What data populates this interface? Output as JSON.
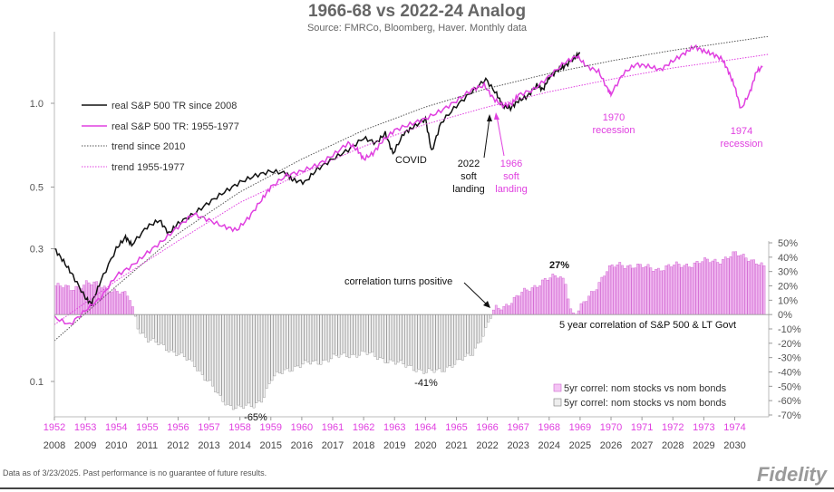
{
  "chart_data": {
    "type": "line",
    "title": "1966-68 vs 2022-24 Analog",
    "subtitle": "Source: FMRCo, Bloomberg, Haver.  Monthly data",
    "x_ticks_bottom": [
      "2008",
      "2009",
      "2010",
      "2011",
      "2012",
      "2013",
      "2014",
      "2015",
      "2016",
      "2017",
      "2018",
      "2019",
      "2020",
      "2021",
      "2022",
      "2023",
      "2024",
      "2025",
      "2026",
      "2027",
      "2028",
      "2029",
      "2030"
    ],
    "x_ticks_top": [
      "1952",
      "1953",
      "1954",
      "1955",
      "1956",
      "1957",
      "1958",
      "1959",
      "1960",
      "1961",
      "1962",
      "1963",
      "1964",
      "1965",
      "1966",
      "1967",
      "1968",
      "1969",
      "1970",
      "1971",
      "1972",
      "1973",
      "1974"
    ],
    "y_left_ticks": [
      {
        "value": 1.0,
        "label": "1.0"
      },
      {
        "value": 0.5,
        "label": "0.5"
      },
      {
        "value": 0.3,
        "label": "0.3"
      },
      {
        "value": 0.1,
        "label": "0.1"
      }
    ],
    "y_right_ticks": [
      {
        "value": 50,
        "label": "50%"
      },
      {
        "value": 40,
        "label": "40%"
      },
      {
        "value": 30,
        "label": "30%"
      },
      {
        "value": 20,
        "label": "20%"
      },
      {
        "value": 10,
        "label": "10%"
      },
      {
        "value": 0,
        "label": "0%"
      },
      {
        "value": -10,
        "label": "-10%"
      },
      {
        "value": -20,
        "label": "-20%"
      },
      {
        "value": -30,
        "label": "-30%"
      },
      {
        "value": -40,
        "label": "-40%"
      },
      {
        "value": -50,
        "label": "-50%"
      },
      {
        "value": -60,
        "label": "-60%"
      },
      {
        "value": -70,
        "label": "-70%"
      }
    ],
    "y_right_range": [
      -70,
      50
    ],
    "series": [
      {
        "name": "real S&P 500 TR since 2008",
        "color": "#111111",
        "style": "solid",
        "points": [
          [
            2008.0,
            0.3
          ],
          [
            2008.3,
            0.27
          ],
          [
            2008.6,
            0.24
          ],
          [
            2009.0,
            0.2
          ],
          [
            2009.2,
            0.19
          ],
          [
            2009.5,
            0.23
          ],
          [
            2010.0,
            0.3
          ],
          [
            2010.3,
            0.33
          ],
          [
            2010.5,
            0.31
          ],
          [
            2011.0,
            0.36
          ],
          [
            2011.4,
            0.38
          ],
          [
            2011.7,
            0.34
          ],
          [
            2012.0,
            0.37
          ],
          [
            2012.5,
            0.4
          ],
          [
            2013.0,
            0.44
          ],
          [
            2013.5,
            0.48
          ],
          [
            2014.0,
            0.52
          ],
          [
            2014.5,
            0.55
          ],
          [
            2015.0,
            0.57
          ],
          [
            2015.5,
            0.56
          ],
          [
            2015.7,
            0.53
          ],
          [
            2016.1,
            0.52
          ],
          [
            2016.5,
            0.58
          ],
          [
            2017.0,
            0.63
          ],
          [
            2017.5,
            0.68
          ],
          [
            2018.0,
            0.75
          ],
          [
            2018.4,
            0.72
          ],
          [
            2018.7,
            0.78
          ],
          [
            2018.95,
            0.66
          ],
          [
            2019.3,
            0.78
          ],
          [
            2019.6,
            0.82
          ],
          [
            2020.0,
            0.88
          ],
          [
            2020.2,
            0.67
          ],
          [
            2020.5,
            0.85
          ],
          [
            2021.0,
            0.98
          ],
          [
            2021.5,
            1.1
          ],
          [
            2021.95,
            1.22
          ],
          [
            2022.3,
            1.08
          ],
          [
            2022.5,
            0.98
          ],
          [
            2022.75,
            0.96
          ],
          [
            2023.0,
            1.02
          ],
          [
            2023.3,
            1.06
          ],
          [
            2023.6,
            1.16
          ],
          [
            2023.8,
            1.12
          ],
          [
            2024.0,
            1.24
          ],
          [
            2024.3,
            1.32
          ],
          [
            2024.5,
            1.36
          ],
          [
            2024.8,
            1.45
          ],
          [
            2025.0,
            1.52
          ]
        ]
      },
      {
        "name": "real S&P 500 TR: 1955-1977",
        "color": "#e040e0",
        "style": "solid",
        "points": [
          [
            2008.0,
            0.17
          ],
          [
            2008.5,
            0.16
          ],
          [
            2009.0,
            0.18
          ],
          [
            2009.5,
            0.2
          ],
          [
            2010.0,
            0.24
          ],
          [
            2010.5,
            0.26
          ],
          [
            2011.0,
            0.29
          ],
          [
            2011.5,
            0.32
          ],
          [
            2012.0,
            0.36
          ],
          [
            2012.5,
            0.4
          ],
          [
            2013.0,
            0.38
          ],
          [
            2013.5,
            0.36
          ],
          [
            2013.9,
            0.35
          ],
          [
            2014.3,
            0.39
          ],
          [
            2014.7,
            0.45
          ],
          [
            2015.0,
            0.5
          ],
          [
            2015.5,
            0.55
          ],
          [
            2016.0,
            0.57
          ],
          [
            2016.5,
            0.6
          ],
          [
            2017.0,
            0.65
          ],
          [
            2017.5,
            0.72
          ],
          [
            2017.8,
            0.68
          ],
          [
            2018.0,
            0.63
          ],
          [
            2018.3,
            0.66
          ],
          [
            2018.6,
            0.73
          ],
          [
            2019.0,
            0.8
          ],
          [
            2019.5,
            0.84
          ],
          [
            2020.0,
            0.88
          ],
          [
            2020.5,
            0.94
          ],
          [
            2021.0,
            1.02
          ],
          [
            2021.5,
            1.12
          ],
          [
            2021.9,
            1.16
          ],
          [
            2022.2,
            1.04
          ],
          [
            2022.5,
            0.98
          ],
          [
            2022.8,
            1.0
          ],
          [
            2023.0,
            1.07
          ],
          [
            2023.5,
            1.12
          ],
          [
            2024.0,
            1.25
          ],
          [
            2024.5,
            1.4
          ],
          [
            2024.9,
            1.48
          ],
          [
            2025.2,
            1.36
          ],
          [
            2025.6,
            1.3
          ],
          [
            2025.9,
            1.12
          ],
          [
            2026.0,
            1.08
          ],
          [
            2026.4,
            1.28
          ],
          [
            2026.8,
            1.38
          ],
          [
            2027.2,
            1.36
          ],
          [
            2027.6,
            1.32
          ],
          [
            2028.0,
            1.42
          ],
          [
            2028.4,
            1.52
          ],
          [
            2028.7,
            1.6
          ],
          [
            2029.0,
            1.54
          ],
          [
            2029.3,
            1.5
          ],
          [
            2029.6,
            1.44
          ],
          [
            2029.8,
            1.3
          ],
          [
            2030.0,
            1.15
          ],
          [
            2030.2,
            0.95
          ],
          [
            2030.5,
            1.1
          ],
          [
            2030.7,
            1.3
          ],
          [
            2030.9,
            1.35
          ]
        ]
      },
      {
        "name": "trend since 2010",
        "color": "#555555",
        "style": "dotted",
        "points": [
          [
            2008.0,
            0.14
          ],
          [
            2010.0,
            0.22
          ],
          [
            2012.0,
            0.34
          ],
          [
            2014.0,
            0.48
          ],
          [
            2016.0,
            0.63
          ],
          [
            2018.0,
            0.8
          ],
          [
            2020.0,
            0.97
          ],
          [
            2022.0,
            1.13
          ],
          [
            2024.0,
            1.28
          ],
          [
            2026.0,
            1.42
          ],
          [
            2028.0,
            1.55
          ],
          [
            2030.0,
            1.67
          ],
          [
            2031.1,
            1.74
          ]
        ]
      },
      {
        "name": "trend 1955-1977",
        "color": "#e040e0",
        "style": "dotted",
        "points": [
          [
            2008.0,
            0.16
          ],
          [
            2010.0,
            0.23
          ],
          [
            2012.0,
            0.32
          ],
          [
            2014.0,
            0.44
          ],
          [
            2016.0,
            0.56
          ],
          [
            2018.0,
            0.7
          ],
          [
            2020.0,
            0.84
          ],
          [
            2022.0,
            0.97
          ],
          [
            2024.0,
            1.1
          ],
          [
            2026.0,
            1.22
          ],
          [
            2028.0,
            1.34
          ],
          [
            2030.0,
            1.44
          ],
          [
            2031.1,
            1.5
          ]
        ]
      }
    ],
    "correlation_bars": {
      "legend_pink": "5yr correl: nom stocks vs nom bonds",
      "legend_gray": "5yr correl: nom stocks vs nom bonds",
      "bars": [
        [
          2008.0,
          20
        ],
        [
          2008.5,
          18
        ],
        [
          2009.0,
          22
        ],
        [
          2009.5,
          20
        ],
        [
          2010.0,
          16
        ],
        [
          2010.4,
          12
        ],
        [
          2010.7,
          -10
        ],
        [
          2011.0,
          -18
        ],
        [
          2011.5,
          -22
        ],
        [
          2012.0,
          -28
        ],
        [
          2012.5,
          -35
        ],
        [
          2013.0,
          -48
        ],
        [
          2013.3,
          -58
        ],
        [
          2013.6,
          -63
        ],
        [
          2014.0,
          -65
        ],
        [
          2014.4,
          -64
        ],
        [
          2014.7,
          -58
        ],
        [
          2015.0,
          -45
        ],
        [
          2015.5,
          -38
        ],
        [
          2016.0,
          -35
        ],
        [
          2016.5,
          -33
        ],
        [
          2017.0,
          -30
        ],
        [
          2017.5,
          -28
        ],
        [
          2018.0,
          -27
        ],
        [
          2018.5,
          -30
        ],
        [
          2019.0,
          -34
        ],
        [
          2019.5,
          -36
        ],
        [
          2020.0,
          -41
        ],
        [
          2020.5,
          -38
        ],
        [
          2021.0,
          -34
        ],
        [
          2021.5,
          -26
        ],
        [
          2021.9,
          -12
        ],
        [
          2022.2,
          4
        ],
        [
          2022.5,
          6
        ],
        [
          2022.8,
          10
        ],
        [
          2023.1,
          15
        ],
        [
          2023.5,
          20
        ],
        [
          2023.8,
          24
        ],
        [
          2024.0,
          25
        ],
        [
          2024.3,
          27
        ],
        [
          2024.5,
          23
        ],
        [
          2024.7,
          0
        ],
        [
          2024.9,
          2
        ],
        [
          2025.1,
          8
        ],
        [
          2025.5,
          20
        ],
        [
          2025.8,
          30
        ],
        [
          2026.0,
          33
        ],
        [
          2026.3,
          35
        ],
        [
          2026.7,
          34
        ],
        [
          2027.0,
          33
        ],
        [
          2027.5,
          32
        ],
        [
          2028.0,
          34
        ],
        [
          2028.5,
          35
        ],
        [
          2029.0,
          37
        ],
        [
          2029.5,
          38
        ],
        [
          2030.0,
          42
        ],
        [
          2030.4,
          40
        ],
        [
          2030.8,
          35
        ],
        [
          2031.0,
          30
        ]
      ]
    },
    "annotations": {
      "covid": "COVID",
      "soft_2022": [
        "2022",
        "soft",
        "landing"
      ],
      "soft_1966": [
        "1966",
        "soft",
        "landing"
      ],
      "recession_1970": [
        "1970",
        "recession"
      ],
      "recession_1974": [
        "1974",
        "recession"
      ],
      "corr_positive": "correlation turns positive",
      "pct_27": "27%",
      "pct_neg65": "-65%",
      "pct_neg41": "-41%",
      "corr_label": "5 year correlation of S&P 500 & LT Govt"
    },
    "legend": {
      "line1": "real S&P 500 TR since 2008",
      "line2": "real S&P 500 TR: 1955-1977",
      "line3": "trend since 2010",
      "line4": "trend 1955-1977"
    }
  },
  "footer": {
    "note": "Data as of 3/23/2025. Past performance is no guarantee of future results.",
    "brand": "Fidelity"
  },
  "colors": {
    "pink": "#e040e0",
    "pink_fill": "#f4c4f4",
    "gray_fill": "#e8e8e8",
    "gray_edge": "#777777",
    "axis": "#999999"
  }
}
